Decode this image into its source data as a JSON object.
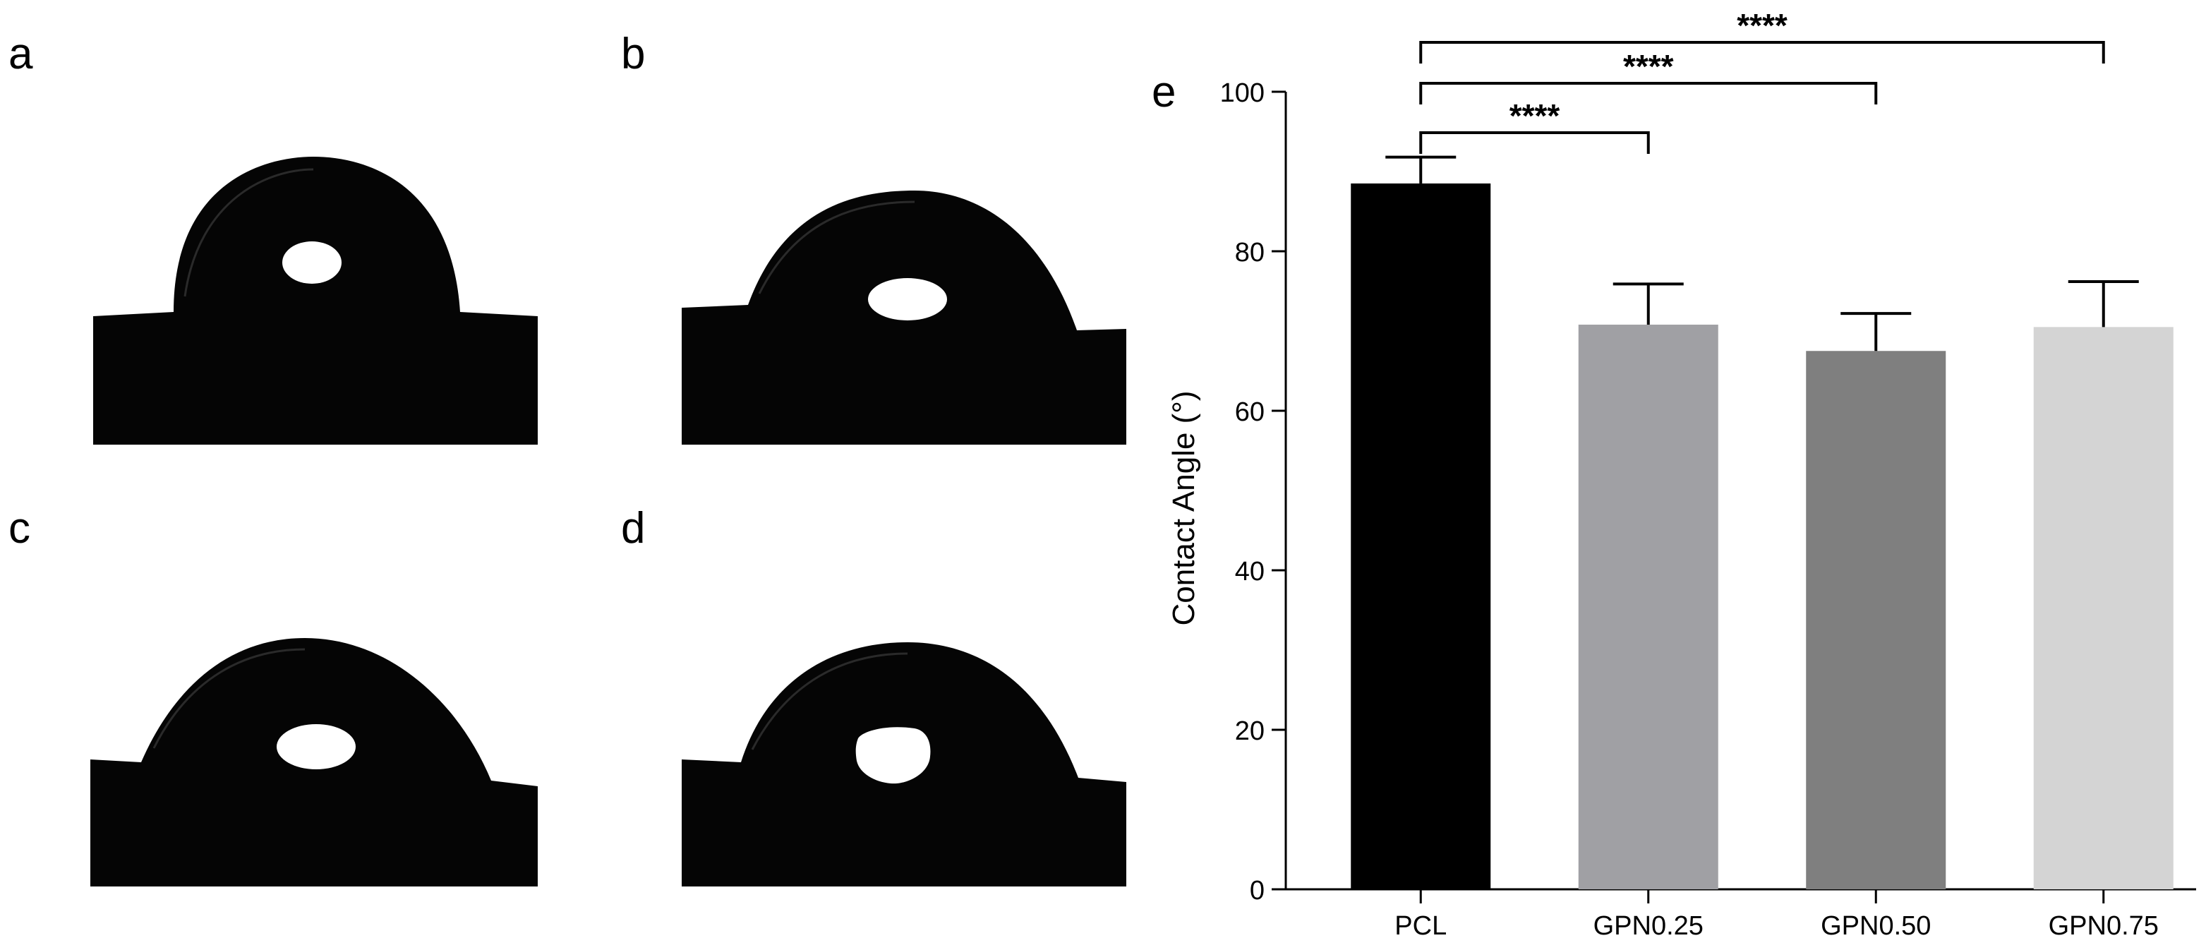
{
  "panels": {
    "a": "a",
    "b": "b",
    "c": "c",
    "d": "d",
    "e": "e"
  },
  "chart_data": {
    "type": "bar",
    "categories": [
      "PCL",
      "GPN0.25",
      "GPN0.50",
      "GPN0.75"
    ],
    "values": [
      88.5,
      70.8,
      67.5,
      70.5
    ],
    "errors": [
      3.3,
      5.1,
      4.7,
      5.7
    ],
    "bar_colors": [
      "#000000",
      "#a0a0a4",
      "#7f7f7f",
      "#d4d4d4"
    ],
    "xlabel": "",
    "ylabel": "Contact Angle (°)",
    "ylim": [
      0,
      100
    ],
    "yticks": [
      0,
      20,
      40,
      60,
      80,
      100
    ],
    "ytick_labels": [
      "0",
      "20",
      "40",
      "60",
      "80",
      "100"
    ],
    "grid": false,
    "significance": [
      {
        "from": "PCL",
        "to": "GPN0.25",
        "label": "****"
      },
      {
        "from": "PCL",
        "to": "GPN0.50",
        "label": "****"
      },
      {
        "from": "PCL",
        "to": "GPN0.75",
        "label": "****"
      }
    ]
  }
}
